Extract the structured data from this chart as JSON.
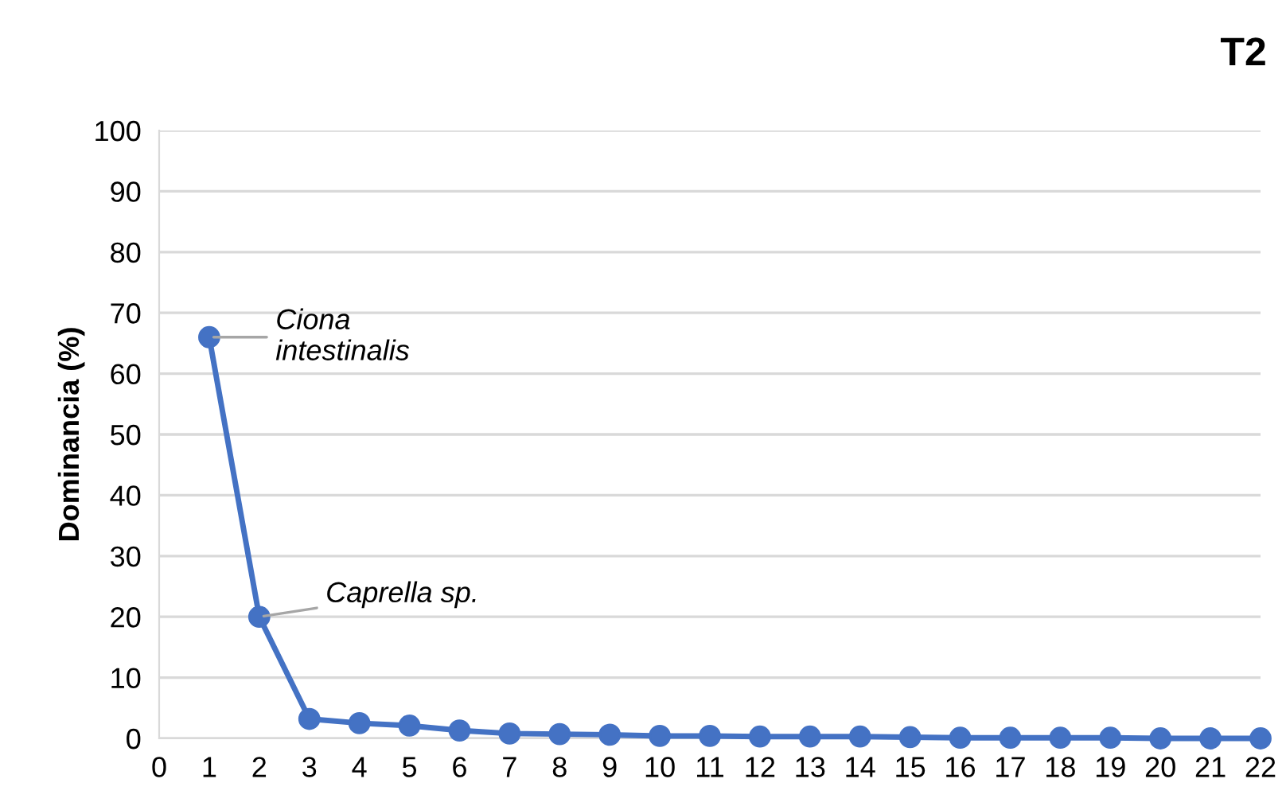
{
  "chart_data": {
    "type": "line",
    "title": "T2",
    "ylabel": "Dominancia (%)",
    "x": [
      1,
      2,
      3,
      4,
      5,
      6,
      7,
      8,
      9,
      10,
      11,
      12,
      13,
      14,
      15,
      16,
      17,
      18,
      19,
      20,
      21,
      22
    ],
    "series": [
      {
        "color": "#4472c4",
        "values": [
          66,
          20,
          3.2,
          2.5,
          2.1,
          1.3,
          0.8,
          0.7,
          0.6,
          0.4,
          0.4,
          0.3,
          0.3,
          0.3,
          0.2,
          0.1,
          0.1,
          0.1,
          0.1,
          0,
          0,
          0
        ]
      }
    ],
    "xlim": [
      0,
      22
    ],
    "xticks": [
      0,
      1,
      2,
      3,
      4,
      5,
      6,
      7,
      8,
      9,
      10,
      11,
      12,
      13,
      14,
      15,
      16,
      17,
      18,
      19,
      20,
      21,
      22
    ],
    "ylim": [
      0,
      100
    ],
    "yticks": [
      0,
      10,
      20,
      30,
      40,
      50,
      60,
      70,
      80,
      90,
      100
    ],
    "grid": "y",
    "marker": "circle",
    "line_style": "solid",
    "annotations": [
      {
        "text": "Ciona\nintestinalis",
        "x": 1,
        "y": 66
      },
      {
        "text": "Caprella sp.",
        "x": 2,
        "y": 20
      }
    ]
  }
}
